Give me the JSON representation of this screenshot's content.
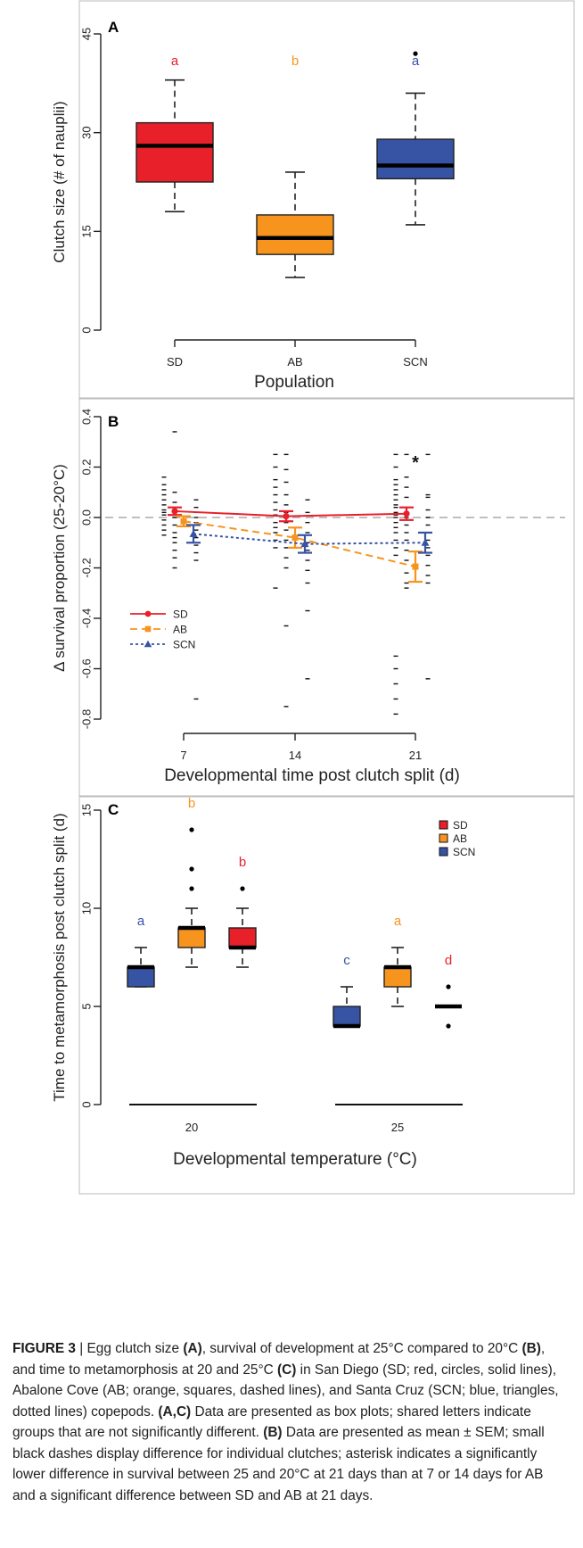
{
  "colors": {
    "SD": "#e8202a",
    "AB": "#f7941d",
    "SCN": "#3653a4",
    "axis": "#222222",
    "whisker": "#222222"
  },
  "chart_data": [
    {
      "panel": "A",
      "type": "box",
      "ylabel": "Clutch size (# of nauplii)",
      "xlabel": "Population",
      "ylim": [
        0,
        45
      ],
      "yticks": [
        0,
        15,
        30,
        45
      ],
      "categories": [
        "SD",
        "AB",
        "SCN"
      ],
      "boxes": [
        {
          "name": "SD",
          "min": 18,
          "q1": 22.5,
          "median": 28,
          "q3": 31.5,
          "max": 38,
          "outliers": [],
          "letter": "a",
          "color": "#e8202a"
        },
        {
          "name": "AB",
          "min": 8,
          "q1": 11.5,
          "median": 14,
          "q3": 17.5,
          "max": 24,
          "outliers": [],
          "letter": "b",
          "color": "#f7941d"
        },
        {
          "name": "SCN",
          "min": 16,
          "q1": 23,
          "median": 25,
          "q3": 29,
          "max": 36,
          "outliers": [
            42
          ],
          "letter": "a",
          "color": "#3653a4"
        }
      ]
    },
    {
      "panel": "B",
      "type": "line",
      "ylabel": "Δ survival proportion (25-20°C)",
      "xlabel": "Developmental time post clutch split (d)",
      "ylim": [
        -0.8,
        0.4
      ],
      "yticks": [
        -0.8,
        -0.6,
        -0.4,
        -0.2,
        0.0,
        0.2,
        0.4
      ],
      "x": [
        7,
        14,
        21
      ],
      "reference_line": 0,
      "annotation": {
        "text": "*",
        "x": 21
      },
      "legend": [
        "SD",
        "AB",
        "SCN"
      ],
      "series": [
        {
          "name": "SD",
          "marker": "circle",
          "linestyle": "solid",
          "color": "#e8202a",
          "mean": [
            0.025,
            0.005,
            0.015
          ],
          "sem": [
            0.015,
            0.02,
            0.025
          ],
          "clutches": [
            [
              0.16,
              0.13,
              0.11,
              0.09,
              0.07,
              0.05,
              0.03,
              0.02,
              0.01,
              -0.01,
              -0.03,
              -0.05,
              -0.07
            ],
            [
              0.25,
              0.2,
              0.15,
              0.12,
              0.09,
              0.06,
              0.03,
              0.01,
              -0.02,
              -0.04,
              -0.06,
              -0.09,
              -0.12,
              -0.28
            ],
            [
              0.25,
              0.2,
              0.15,
              0.13,
              0.11,
              0.09,
              0.07,
              0.05,
              0.04,
              0.02,
              0.01,
              0.0,
              -0.02,
              -0.04,
              -0.06,
              -0.09,
              -0.12,
              -0.15,
              -0.55,
              -0.6,
              -0.66,
              -0.72,
              -0.78
            ]
          ]
        },
        {
          "name": "AB",
          "marker": "square",
          "linestyle": "dashed",
          "color": "#f7941d",
          "mean": [
            -0.015,
            -0.08,
            -0.195
          ],
          "sem": [
            0.02,
            0.04,
            0.06
          ],
          "clutches": [
            [
              0.34,
              0.1,
              0.06,
              0.03,
              0.0,
              -0.03,
              -0.06,
              -0.08,
              -0.1,
              -0.13,
              -0.16,
              -0.2
            ],
            [
              0.25,
              0.19,
              0.14,
              0.09,
              0.05,
              0.02,
              -0.02,
              -0.05,
              -0.09,
              -0.12,
              -0.16,
              -0.2,
              -0.43,
              -0.75
            ],
            [
              0.25,
              0.16,
              0.12,
              0.08,
              0.04,
              0.02,
              0.0,
              -0.03,
              -0.06,
              -0.09,
              -0.13,
              -0.17,
              -0.22,
              -0.26,
              -0.28
            ]
          ]
        },
        {
          "name": "SCN",
          "marker": "triangle",
          "linestyle": "dotted",
          "color": "#3653a4",
          "mean": [
            -0.065,
            -0.105,
            -0.1
          ],
          "sem": [
            0.035,
            0.035,
            0.04
          ],
          "clutches": [
            [
              0.07,
              0.04,
              0.02,
              0.0,
              -0.02,
              -0.05,
              -0.08,
              -0.11,
              -0.14,
              -0.17,
              -0.72
            ],
            [
              0.07,
              0.02,
              -0.02,
              -0.06,
              -0.1,
              -0.13,
              -0.17,
              -0.21,
              -0.26,
              -0.37,
              -0.64
            ],
            [
              0.25,
              0.09,
              0.08,
              0.03,
              0.0,
              -0.03,
              -0.06,
              -0.09,
              -0.12,
              -0.15,
              -0.19,
              -0.23,
              -0.26,
              -0.64
            ]
          ]
        }
      ]
    },
    {
      "panel": "C",
      "type": "box",
      "ylabel": "Time to metamorphosis post clutch split (d)",
      "xlabel": "Developmental temperature (°C)",
      "ylim": [
        0,
        15
      ],
      "yticks": [
        0,
        5,
        10,
        15
      ],
      "categories": [
        "20",
        "25"
      ],
      "legend": [
        "SD",
        "AB",
        "SCN"
      ],
      "groups": [
        {
          "temperature": "20",
          "boxes": [
            {
              "name": "SCN",
              "min": 6,
              "q1": 6,
              "median": 7,
              "q3": 7,
              "max": 8,
              "outliers": [],
              "letter": "a",
              "color": "#3653a4"
            },
            {
              "name": "AB",
              "min": 7,
              "q1": 8,
              "median": 9,
              "q3": 9,
              "max": 10,
              "outliers": [
                11,
                12,
                14
              ],
              "letter": "b",
              "color": "#f7941d"
            },
            {
              "name": "SD",
              "min": 7,
              "q1": 8,
              "median": 8,
              "q3": 9,
              "max": 10,
              "outliers": [
                11
              ],
              "letter": "b",
              "color": "#e8202a"
            }
          ]
        },
        {
          "temperature": "25",
          "boxes": [
            {
              "name": "SCN",
              "min": 4,
              "q1": 4,
              "median": 4,
              "q3": 5,
              "max": 6,
              "outliers": [],
              "letter": "c",
              "color": "#3653a4"
            },
            {
              "name": "AB",
              "min": 5,
              "q1": 6,
              "median": 7,
              "q3": 7,
              "max": 8,
              "outliers": [],
              "letter": "a",
              "color": "#f7941d"
            },
            {
              "name": "SD",
              "min": 5,
              "q1": 5,
              "median": 5,
              "q3": 5,
              "max": 5,
              "outliers": [
                4,
                6
              ],
              "letter": "d",
              "color": "#e8202a"
            }
          ]
        }
      ]
    }
  ],
  "caption": {
    "label": "FIGURE 3",
    "separator": " | ",
    "segments": [
      {
        "t": "Egg clutch size ",
        "b": false
      },
      {
        "t": "(A)",
        "b": true
      },
      {
        "t": ", survival of development at 25°C compared to 20°C ",
        "b": false
      },
      {
        "t": "(B)",
        "b": true
      },
      {
        "t": ", and time to metamorphosis at 20 and 25°C ",
        "b": false
      },
      {
        "t": "(C)",
        "b": true
      },
      {
        "t": " in San Diego (SD; red, circles, solid lines), Abalone Cove (AB; orange, squares, dashed lines), and Santa Cruz (SCN; blue, triangles, dotted lines) copepods. ",
        "b": false
      },
      {
        "t": "(A,C)",
        "b": true
      },
      {
        "t": " Data are presented as box plots; shared letters indicate groups that are not significantly different. ",
        "b": false
      },
      {
        "t": "(B)",
        "b": true
      },
      {
        "t": " Data are presented as mean ± SEM; small black dashes display difference for individual clutches; asterisk indicates a significantly lower difference in survival between 25 and 20°C at 21 days than at 7 or 14 days for AB and a significant difference between SD and AB at 21 days.",
        "b": false
      }
    ]
  }
}
